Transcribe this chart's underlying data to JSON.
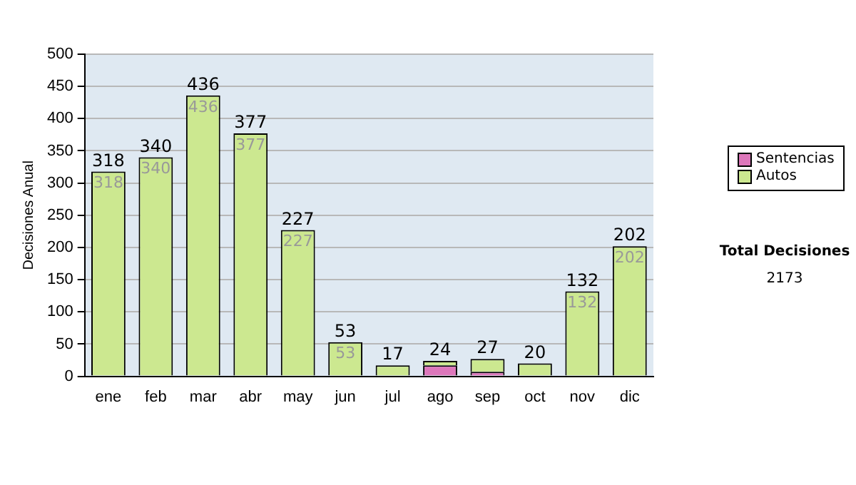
{
  "chart_data": {
    "type": "bar",
    "ylabel": "Decisiones Anual",
    "categories": [
      "ene",
      "feb",
      "mar",
      "abr",
      "may",
      "jun",
      "jul",
      "ago",
      "sep",
      "oct",
      "nov",
      "dic"
    ],
    "series": [
      {
        "name": "Sentencias",
        "color": "#dd77bb",
        "values": [
          0,
          0,
          0,
          0,
          0,
          0,
          0,
          17,
          7,
          0,
          0,
          0
        ]
      },
      {
        "name": "Autos",
        "color": "#cce890",
        "values": [
          318,
          340,
          436,
          377,
          227,
          53,
          17,
          7,
          20,
          20,
          132,
          202
        ],
        "value_labels": [
          "318",
          "340",
          "436",
          "377",
          "227",
          "53",
          null,
          null,
          null,
          null,
          "132",
          "202"
        ]
      }
    ],
    "stacked": true,
    "totals": [
      "318",
      "340",
      "436",
      "377",
      "227",
      "53",
      "17",
      "24",
      "27",
      "20",
      "132",
      "202"
    ],
    "ylim": [
      0,
      500
    ],
    "yticks": [
      0,
      50,
      100,
      150,
      200,
      250,
      300,
      350,
      400,
      450,
      500
    ],
    "grid": "y",
    "legend": "right",
    "annotations": [
      "Total Decisiones",
      "2173"
    ]
  }
}
